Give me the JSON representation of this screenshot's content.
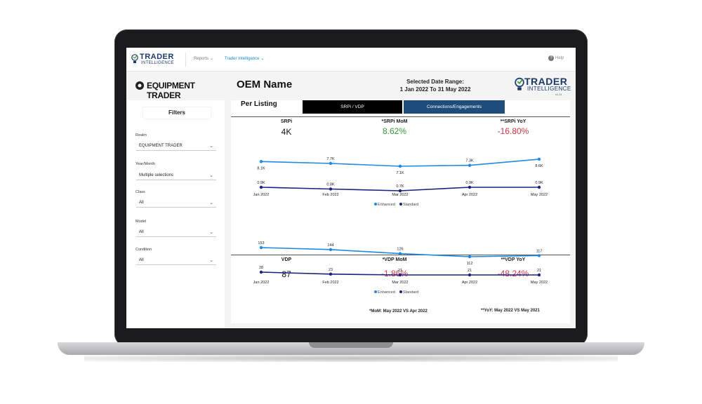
{
  "nav": {
    "logo_line1": "TRADER",
    "logo_line2": "INTELLIGENCE",
    "reports": "Reports",
    "trader_intelligence": "Trader Intelligence",
    "help": "Help"
  },
  "header": {
    "brand": "EQUIPMENT TRADER",
    "page_title": "OEM Name",
    "date_range_label": "Selected Date Range:",
    "date_range_value": "1 Jan 2022 To 31 May 2022",
    "logo_line1": "TRADER",
    "logo_line2": "INTELLIGENCE",
    "logo_version": "v1.11"
  },
  "filters": {
    "title": "Filters",
    "realm_label": "Realm",
    "realm_value": "EQUIPMENT TRADER",
    "yearmonth_label": "Year/Month",
    "yearmonth_value": "Multiple selections",
    "class_label": "Class",
    "class_value": "All",
    "model_label": "Model",
    "model_value": "All",
    "condition_label": "Condition",
    "condition_value": "All"
  },
  "main": {
    "section_title": "Per Listing",
    "tab_srpi_vdp": "SRPi / VDP",
    "tab_connections": "Connections/Engagements",
    "srpi": {
      "label": "SRPi",
      "value": "4K",
      "mom_label": "*SRPi MoM",
      "mom_value": "8.62%",
      "yoy_label": "**SRPi YoY",
      "yoy_value": "-16.80%"
    },
    "vdp": {
      "label": "VDP",
      "value": "87",
      "mom_label": "*VDP MoM",
      "mom_value": "-1.86%",
      "yoy_label": "**VDP YoY",
      "yoy_value": "-48.24%"
    },
    "footnote_mom": "*MoM: May 2022 VS Apr 2022",
    "footnote_yoy": "**YoY: May 2022 VS May 2021"
  },
  "colors": {
    "enhanced": "#1e88e5",
    "standard": "#1a237e",
    "positive": "#3a9a3a",
    "negative": "#d0344a",
    "tab_active": "#000000",
    "tab_other": "#1e4d7b"
  },
  "chart_data": [
    {
      "type": "line",
      "categories": [
        "Jan 2022",
        "Feb 2022",
        "Mar 2022",
        "Apr 2022",
        "May 2022"
      ],
      "series": [
        {
          "name": "Enhanced",
          "values": [
            8.1,
            7.7,
            7.1,
            7.3,
            8.6
          ],
          "labels": [
            "8.1K",
            "7.7K",
            "7.1K",
            "7.3K",
            "8.6K"
          ]
        },
        {
          "name": "Standard",
          "values": [
            0.9,
            0.8,
            0.7,
            0.9,
            0.9
          ],
          "labels": [
            "0.9K",
            "0.8K",
            "0.7K",
            "0.9K",
            "0.9K"
          ]
        }
      ],
      "legend": "bottom-center"
    },
    {
      "type": "line",
      "categories": [
        "Jan 2022",
        "Feb 2022",
        "Mar 2022",
        "Apr 2022",
        "May 2022"
      ],
      "series": [
        {
          "name": "Enhanced",
          "values": [
            153,
            144,
            126,
            112,
            117
          ],
          "labels": [
            "153",
            "144",
            "126",
            "112",
            "117"
          ]
        },
        {
          "name": "Standard",
          "values": [
            28,
            23,
            21,
            21,
            21
          ],
          "labels": [
            "28",
            "23",
            "21",
            "21",
            "21"
          ]
        }
      ],
      "legend": "bottom-center"
    }
  ]
}
